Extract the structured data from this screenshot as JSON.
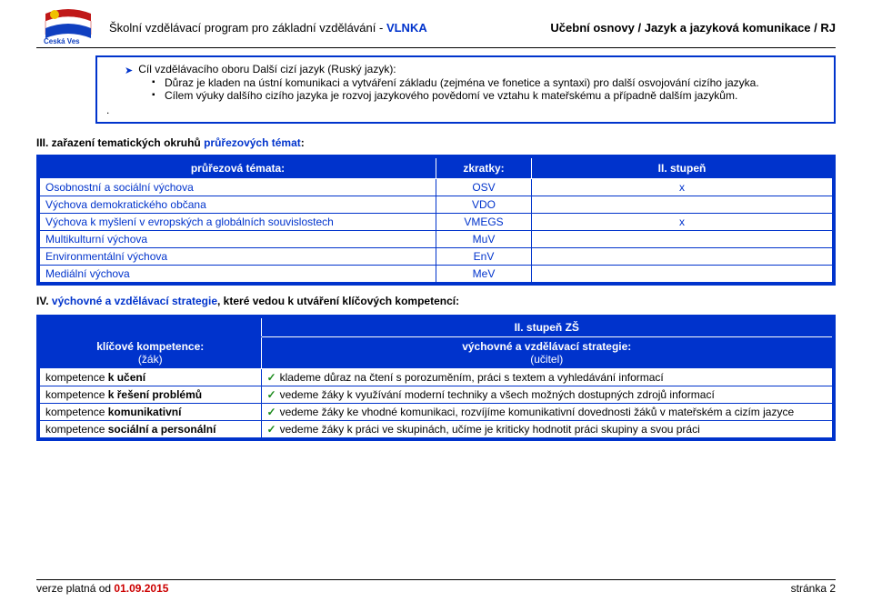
{
  "header": {
    "left_prefix": "Školní vzdělávací program pro základní vzdělávání - ",
    "vlnka": "VLNKA",
    "right": "Učební osnovy / Jazyk a jazyková komunikace / RJ",
    "logo_text": "Česká Ves"
  },
  "box": {
    "arrow_title": "Cíl vzdělávacího oboru Další cizí jazyk (Ruský jazyk):",
    "bullets": [
      "Důraz je kladen na ústní komunikaci a vytváření základu (zejména ve fonetice a syntaxi) pro další osvojování cizího jazyka.",
      "Cílem výuky dalšího cizího jazyka je rozvoj jazykového povědomí ve vztahu k mateřskému a případně dalším jazykům."
    ],
    "dot": "."
  },
  "section3_title_prefix": "III. zařazení tematických okruhů ",
  "section3_title_blue": "průřezových témat",
  "section3_title_suffix": ":",
  "table1": {
    "headers": [
      "průřezová témata:",
      "zkratky:",
      "II. stupeň"
    ],
    "rows": [
      {
        "topic": "Osobnostní a sociální výchova",
        "abbr": "OSV",
        "mark": "x"
      },
      {
        "topic": "Výchova demokratického občana",
        "abbr": "VDO",
        "mark": ""
      },
      {
        "topic": "Výchova k myšlení v evropských a globálních souvislostech",
        "abbr": "VMEGS",
        "mark": "x"
      },
      {
        "topic": "Multikulturní výchova",
        "abbr": "MuV",
        "mark": ""
      },
      {
        "topic": "Environmentální výchova",
        "abbr": "EnV",
        "mark": ""
      },
      {
        "topic": "Mediální výchova",
        "abbr": "MeV",
        "mark": ""
      }
    ],
    "border_color": "#0033cc",
    "header_bg": "#0033cc",
    "header_fg": "#ffffff",
    "body_fg": "#0033cc"
  },
  "section4_prefix": "IV. ",
  "section4_blue": "výchovné a vzdělávací strategie",
  "section4_suffix": ", které vedou k utváření klíčových kompetencí:",
  "table2": {
    "super_header": "II. stupeň ZŠ",
    "headers_left_1": "klíčové kompetence:",
    "headers_left_2": "(žák)",
    "headers_right_1": "výchovné a vzdělávací strategie:",
    "headers_right_2": "(učitel)",
    "rows": [
      {
        "comp": "kompetence <b>k učení</b>",
        "strats": [
          "klademe důraz na čtení s porozuměním, práci s textem a vyhledávání informací"
        ]
      },
      {
        "comp": "kompetence <b>k řešení problémů</b>",
        "strats": [
          "vedeme žáky k využívání moderní techniky a všech možných dostupných zdrojů informací"
        ]
      },
      {
        "comp": "kompetence <b>komunikativní</b>",
        "strats": [
          "vedeme žáky ke vhodné komunikaci, rozvíjíme komunikativní dovednosti žáků v mateřském a cizím jazyce"
        ]
      },
      {
        "comp": "kompetence <b>sociální a personální</b>",
        "strats": [
          "vedeme žáky k práci ve skupinách, učíme je kriticky hodnotit práci skupiny a svou práci"
        ]
      }
    ],
    "border_color": "#0033cc",
    "header_bg": "#0033cc",
    "header_fg": "#ffffff",
    "check_color": "#1a8a1a"
  },
  "footer": {
    "left_prefix": "verze platná od ",
    "date": "01.09.2015",
    "right": "stránka 2"
  }
}
